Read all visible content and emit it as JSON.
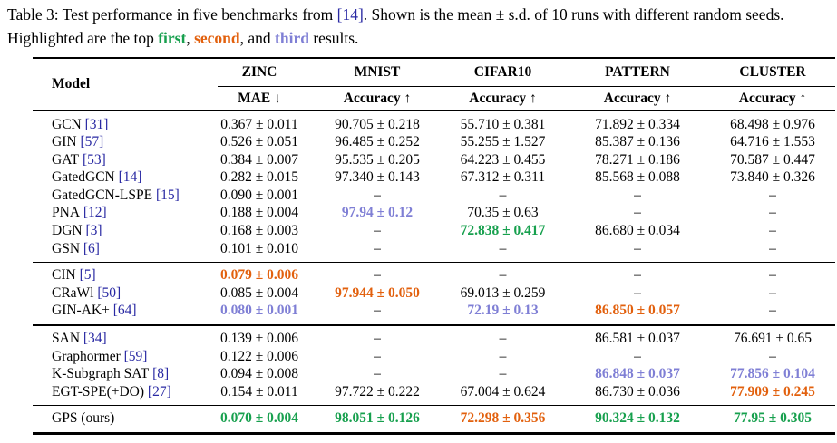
{
  "caption": {
    "prefix": "Table 3: Test performance in five benchmarks from ",
    "cite": "[14]",
    "middle": ". Shown is the mean ± s.d. of 10 runs with different random seeds. Highlighted are the top ",
    "first_label": "first",
    "sep1": ", ",
    "second_label": "second",
    "sep2": ", and ",
    "third_label": "third",
    "suffix": " results."
  },
  "colors": {
    "first": "#17A04E",
    "second": "#E2600D",
    "third": "#7F7FD5",
    "citation": "#2929A3"
  },
  "table": {
    "model_header": "Model",
    "columns": [
      {
        "name": "ZINC",
        "metric": "MAE ↓"
      },
      {
        "name": "MNIST",
        "metric": "Accuracy ↑"
      },
      {
        "name": "CIFAR10",
        "metric": "Accuracy ↑"
      },
      {
        "name": "PATTERN",
        "metric": "Accuracy ↑"
      },
      {
        "name": "CLUSTER",
        "metric": "Accuracy ↑"
      }
    ],
    "sections": [
      {
        "rows": [
          {
            "model": "GCN",
            "cite": "[31]",
            "values": [
              {
                "text": "0.367 ± 0.011"
              },
              {
                "text": "90.705 ± 0.218"
              },
              {
                "text": "55.710 ± 0.381"
              },
              {
                "text": "71.892 ± 0.334"
              },
              {
                "text": "68.498 ± 0.976"
              }
            ]
          },
          {
            "model": "GIN",
            "cite": "[57]",
            "values": [
              {
                "text": "0.526 ± 0.051"
              },
              {
                "text": "96.485 ± 0.252"
              },
              {
                "text": "55.255 ± 1.527"
              },
              {
                "text": "85.387 ± 0.136"
              },
              {
                "text": "64.716 ± 1.553"
              }
            ]
          },
          {
            "model": "GAT",
            "cite": "[53]",
            "values": [
              {
                "text": "0.384 ± 0.007"
              },
              {
                "text": "95.535 ± 0.205"
              },
              {
                "text": "64.223 ± 0.455"
              },
              {
                "text": "78.271 ± 0.186"
              },
              {
                "text": "70.587 ± 0.447"
              }
            ]
          },
          {
            "model": "GatedGCN",
            "cite": "[14]",
            "values": [
              {
                "text": "0.282 ± 0.015"
              },
              {
                "text": "97.340 ± 0.143"
              },
              {
                "text": "67.312 ± 0.311"
              },
              {
                "text": "85.568 ± 0.088"
              },
              {
                "text": "73.840 ± 0.326"
              }
            ]
          },
          {
            "model": "GatedGCN-LSPE",
            "cite": "[15]",
            "values": [
              {
                "text": "0.090 ± 0.001"
              },
              {
                "text": "–"
              },
              {
                "text": "–"
              },
              {
                "text": "–"
              },
              {
                "text": "–"
              }
            ]
          },
          {
            "model": "PNA",
            "cite": "[12]",
            "values": [
              {
                "text": "0.188 ± 0.004"
              },
              {
                "text": "97.94 ± 0.12",
                "rank": "third"
              },
              {
                "text": "70.35 ± 0.63"
              },
              {
                "text": "–"
              },
              {
                "text": "–"
              }
            ]
          },
          {
            "model": "DGN",
            "cite": "[3]",
            "values": [
              {
                "text": "0.168 ± 0.003"
              },
              {
                "text": "–"
              },
              {
                "text": "72.838 ± 0.417",
                "rank": "first"
              },
              {
                "text": "86.680 ± 0.034"
              },
              {
                "text": "–"
              }
            ]
          },
          {
            "model": "GSN",
            "cite": "[6]",
            "values": [
              {
                "text": "0.101 ± 0.010"
              },
              {
                "text": "–"
              },
              {
                "text": "–"
              },
              {
                "text": "–"
              },
              {
                "text": "–"
              }
            ]
          }
        ]
      },
      {
        "rows": [
          {
            "model": "CIN",
            "cite": "[5]",
            "values": [
              {
                "text": "0.079 ± 0.006",
                "rank": "second"
              },
              {
                "text": "–"
              },
              {
                "text": "–"
              },
              {
                "text": "–"
              },
              {
                "text": "–"
              }
            ]
          },
          {
            "model": "CRaWl",
            "cite": "[50]",
            "values": [
              {
                "text": "0.085 ± 0.004"
              },
              {
                "text": "97.944 ± 0.050",
                "rank": "second"
              },
              {
                "text": "69.013 ± 0.259"
              },
              {
                "text": "–"
              },
              {
                "text": "–"
              }
            ]
          },
          {
            "model": "GIN-AK+",
            "cite": "[64]",
            "values": [
              {
                "text": "0.080 ± 0.001",
                "rank": "third"
              },
              {
                "text": "–"
              },
              {
                "text": "72.19 ± 0.13",
                "rank": "third"
              },
              {
                "text": "86.850 ± 0.057",
                "rank": "second"
              },
              {
                "text": "–"
              }
            ]
          }
        ]
      },
      {
        "rows": [
          {
            "model": "SAN",
            "cite": "[34]",
            "values": [
              {
                "text": "0.139 ± 0.006"
              },
              {
                "text": "–"
              },
              {
                "text": "–"
              },
              {
                "text": "86.581 ± 0.037"
              },
              {
                "text": "76.691 ± 0.65"
              }
            ]
          },
          {
            "model": "Graphormer",
            "cite": "[59]",
            "values": [
              {
                "text": "0.122 ± 0.006"
              },
              {
                "text": "–"
              },
              {
                "text": "–"
              },
              {
                "text": "–"
              },
              {
                "text": "–"
              }
            ]
          },
          {
            "model": "K-Subgraph SAT",
            "cite": "[8]",
            "values": [
              {
                "text": "0.094 ± 0.008"
              },
              {
                "text": "–"
              },
              {
                "text": "–"
              },
              {
                "text": "86.848 ± 0.037",
                "rank": "third"
              },
              {
                "text": "77.856 ± 0.104",
                "rank": "third"
              }
            ]
          },
          {
            "model": "EGT-SPE(+DO)",
            "cite": "[27]",
            "values": [
              {
                "text": "0.154 ± 0.011"
              },
              {
                "text": "97.722 ± 0.222"
              },
              {
                "text": "67.004 ± 0.624"
              },
              {
                "text": "86.730 ± 0.036"
              },
              {
                "text": "77.909 ± 0.245",
                "rank": "second"
              }
            ]
          }
        ]
      },
      {
        "rows": [
          {
            "model": "GPS (ours)",
            "cite": "",
            "values": [
              {
                "text": "0.070 ± 0.004",
                "rank": "first"
              },
              {
                "text": "98.051 ± 0.126",
                "rank": "first"
              },
              {
                "text": "72.298 ± 0.356",
                "rank": "second"
              },
              {
                "text": "90.324 ± 0.132",
                "rank": "first"
              },
              {
                "text": "77.95 ± 0.305",
                "rank": "first"
              }
            ]
          }
        ]
      }
    ]
  }
}
